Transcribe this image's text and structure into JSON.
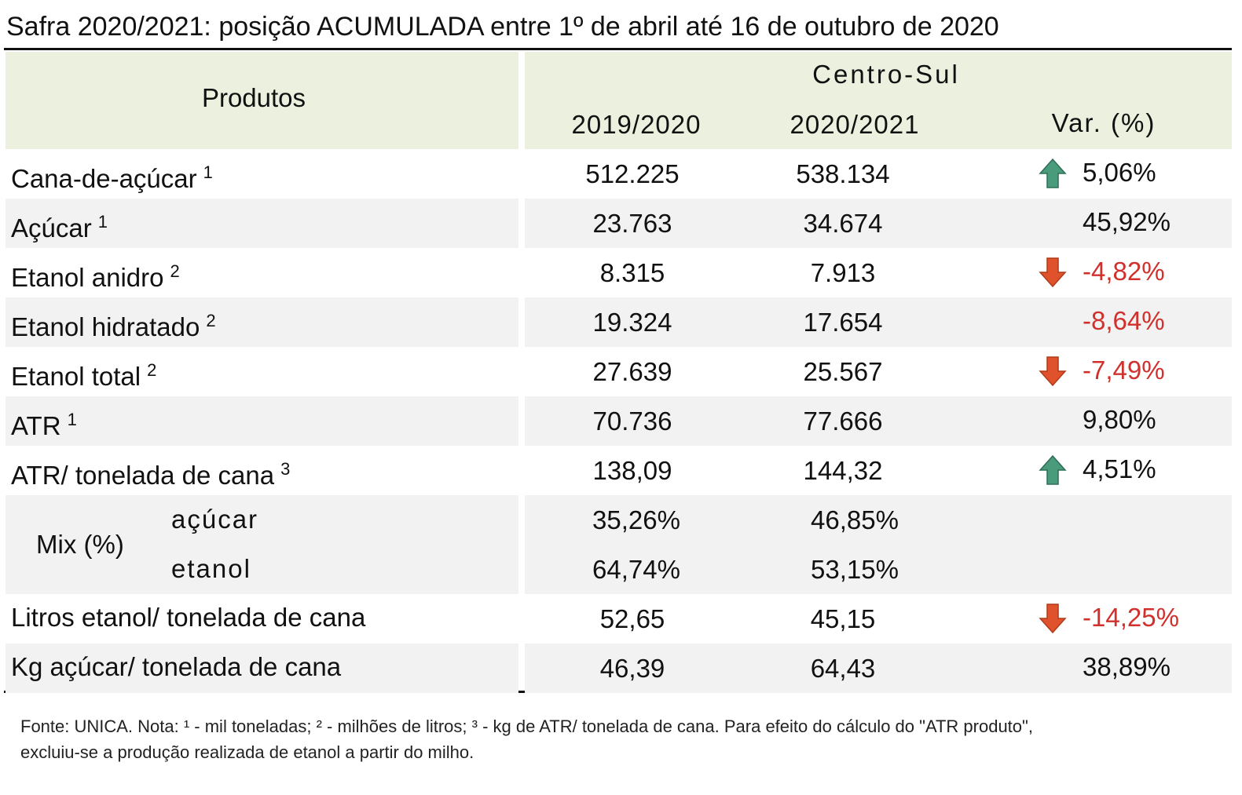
{
  "title": "Safra 2020/2021: posição ACUMULADA entre 1º de abril até 16 de outubro de 2020",
  "header": {
    "products": "Produtos",
    "region": "Centro-Sul",
    "columns": [
      "2019/2020",
      "2020/2021",
      "Var. (%)"
    ]
  },
  "rows": [
    {
      "label": "Cana-de-açúcar",
      "note": "1",
      "v2019": "512.225",
      "v2020": "538.134",
      "var": "5,06%"
    },
    {
      "label": "Açúcar",
      "note": "1",
      "v2019": "23.763",
      "v2020": "34.674",
      "var": "45,92%"
    },
    {
      "label": "Etanol anidro",
      "note": "2",
      "v2019": "8.315",
      "v2020": "7.913",
      "var": "-4,82%"
    },
    {
      "label": "Etanol hidratado",
      "note": "2",
      "v2019": "19.324",
      "v2020": "17.654",
      "var": "-8,64%"
    },
    {
      "label": "Etanol total",
      "note": "2",
      "v2019": "27.639",
      "v2020": "25.567",
      "var": "-7,49%"
    },
    {
      "label": "ATR",
      "note": "1",
      "v2019": "70.736",
      "v2020": "77.666",
      "var": "9,80%"
    },
    {
      "label": "ATR/ tonelada de cana",
      "note": "3",
      "v2019": "138,09",
      "v2020": "144,32",
      "var": "4,51%"
    }
  ],
  "mix": {
    "label": "Mix (%)",
    "rows": [
      {
        "label": "açúcar",
        "v2019": "35,26%",
        "v2020": "46,85%"
      },
      {
        "label": "etanol",
        "v2019": "64,74%",
        "v2020": "53,15%"
      }
    ]
  },
  "rows_after": [
    {
      "label": "Litros etanol/ tonelada de cana",
      "v2019": "52,65",
      "v2020": "45,15",
      "var": "-14,25%"
    },
    {
      "label": "Kg açúcar/ tonelada de cana",
      "v2019": "46,39",
      "v2020": "64,43",
      "var": "38,89%"
    }
  ],
  "footnote": [
    "Fonte: UNICA. Nota: ¹ - mil toneladas; ² - milhões de litros; ³ - kg de ATR/ tonelada de cana. Para efeito do cálculo do \"ATR produto\",",
    "excluiu-se a produção realizada de etanol a partir do milho."
  ]
}
